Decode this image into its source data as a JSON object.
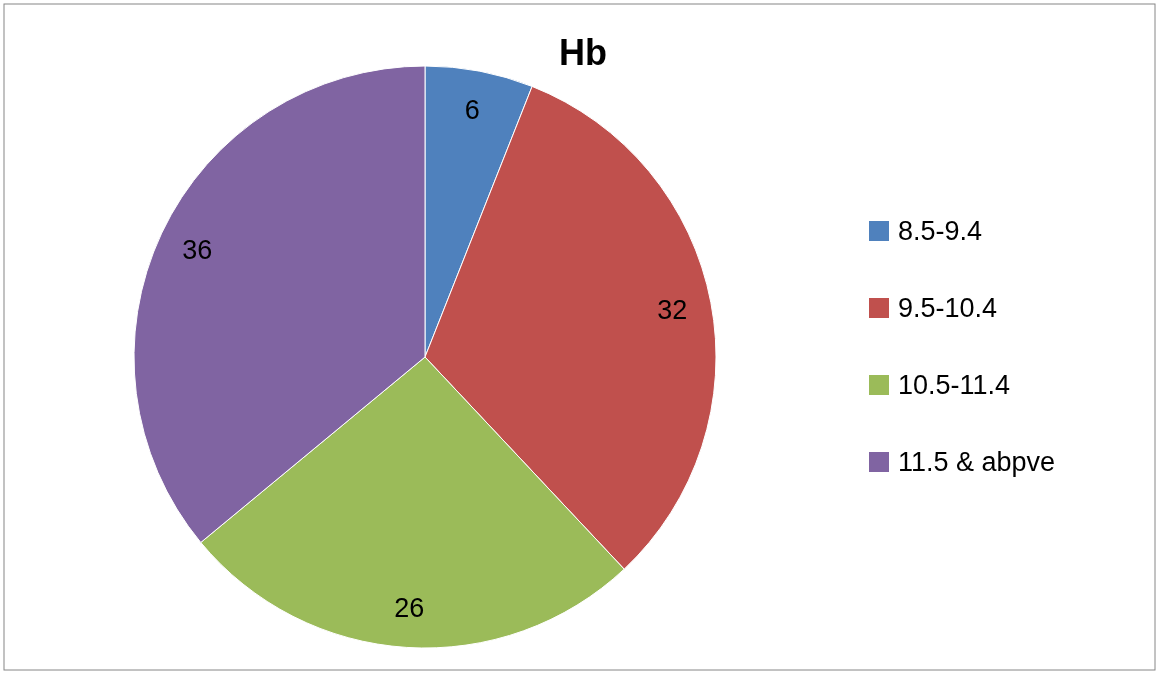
{
  "chart_data": {
    "type": "pie",
    "title": "Hb",
    "categories": [
      "8.5-9.4",
      "9.5-10.4",
      "10.5-11.4",
      "11.5 & abpve"
    ],
    "values": [
      6,
      32,
      26,
      36
    ],
    "colors": [
      "#4f81bd",
      "#c0504d",
      "#9bbb59",
      "#8064a2"
    ],
    "data_labels": true,
    "legend": "right"
  }
}
